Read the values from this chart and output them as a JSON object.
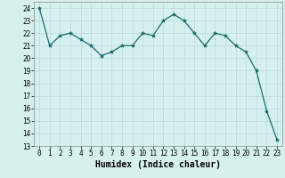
{
  "x": [
    0,
    1,
    2,
    3,
    4,
    5,
    6,
    7,
    8,
    9,
    10,
    11,
    12,
    13,
    14,
    15,
    16,
    17,
    18,
    19,
    20,
    21,
    22,
    23
  ],
  "y": [
    24.0,
    21.0,
    21.8,
    22.0,
    21.5,
    21.0,
    20.2,
    20.5,
    21.0,
    21.0,
    22.0,
    21.8,
    23.0,
    23.5,
    23.0,
    22.0,
    21.0,
    22.0,
    21.8,
    21.0,
    20.5,
    19.0,
    15.8,
    13.5
  ],
  "line_color": "#1a6b6b",
  "marker": "*",
  "marker_size": 3,
  "bg_color": "#d6f0f0",
  "grid_color": "#b8d8d8",
  "xlabel": "Humidex (Indice chaleur)",
  "ylim": [
    13,
    24.5
  ],
  "xlim": [
    -0.5,
    23.5
  ],
  "yticks": [
    13,
    14,
    15,
    16,
    17,
    18,
    19,
    20,
    21,
    22,
    23,
    24
  ],
  "xticks": [
    0,
    1,
    2,
    3,
    4,
    5,
    6,
    7,
    8,
    9,
    10,
    11,
    12,
    13,
    14,
    15,
    16,
    17,
    18,
    19,
    20,
    21,
    22,
    23
  ],
  "xlabel_fontsize": 7,
  "tick_fontsize": 5.5
}
